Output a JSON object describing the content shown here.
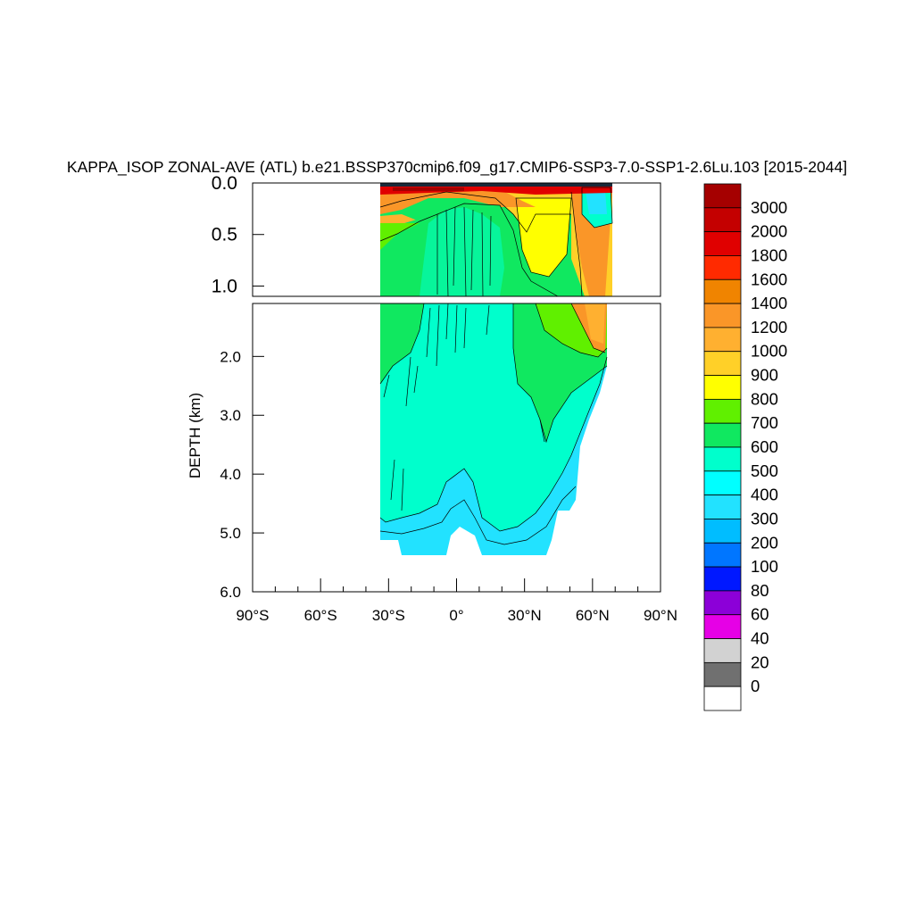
{
  "chart_data": {
    "type": "heatmap",
    "title": "KAPPA_ISOP ZONAL-AVE (ATL) b.e21.BSSP370cmip6.f09_g17.CMIP6-SSP3-7.0-SSP1-2.6Lu.103 [2015-2044]",
    "xlabel": "",
    "ylabel": "DEPTH (km)",
    "xlim": [
      -90,
      90
    ],
    "x_tick_labels": [
      "90°S",
      "60°S",
      "30°S",
      "0°",
      "30°N",
      "60°N",
      "90°N"
    ],
    "x_tick_values": [
      -90,
      -60,
      -30,
      0,
      30,
      60,
      90
    ],
    "upper_panel": {
      "ylim": [
        0.0,
        1.1
      ],
      "y_tick_labels": [
        "0.0",
        "0.5",
        "1.0"
      ],
      "y_tick_values": [
        0.0,
        0.5,
        1.0
      ]
    },
    "lower_panel": {
      "ylim": [
        1.1,
        6.0
      ],
      "y_tick_labels": [
        "2.0",
        "3.0",
        "4.0",
        "5.0",
        "6.0"
      ],
      "y_tick_values": [
        2.0,
        3.0,
        4.0,
        5.0,
        6.0
      ]
    },
    "colorbar": {
      "labels": [
        "3000",
        "2000",
        "1800",
        "1600",
        "1400",
        "1200",
        "1000",
        "900",
        "800",
        "700",
        "600",
        "500",
        "400",
        "300",
        "200",
        "100",
        "80",
        "60",
        "40",
        "20",
        "0"
      ],
      "colors": [
        "#a50000",
        "#c40000",
        "#e00000",
        "#ff2a00",
        "#f08400",
        "#fa9628",
        "#ffb030",
        "#ffd028",
        "#ffff00",
        "#60f000",
        "#10e860",
        "#00ffcc",
        "#00ffff",
        "#22e2ff",
        "#00bdff",
        "#0076ff",
        "#0018ff",
        "#8c00d8",
        "#e600e6",
        "#d2d2d2",
        "#707070",
        "#ffffff"
      ]
    },
    "field_regions": [
      {
        "label": "500",
        "color": "#00ffcc",
        "desc": "deep interior 35S-40N"
      },
      {
        "label": "400",
        "color": "#22e2ff",
        "desc": "near bottom"
      },
      {
        "label": "700",
        "color": "#10e860",
        "desc": "upper ocean & north"
      },
      {
        "label": "800",
        "color": "#60f000",
        "desc": "north 45-62N"
      },
      {
        "label": "900",
        "color": "#ffff00",
        "desc": "subtropical north upper"
      },
      {
        "label": "1200",
        "color": "#fa9628",
        "desc": "surface & high north"
      },
      {
        "label": "3000",
        "color": "#a50000",
        "desc": "surface maximum"
      }
    ]
  }
}
